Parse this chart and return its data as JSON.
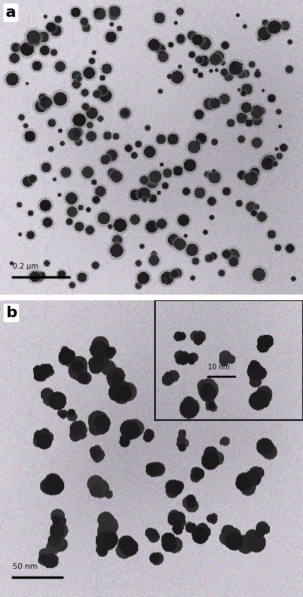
{
  "panel_a": {
    "label": "a",
    "scale_bar_text": "0.2 μm",
    "bg_r": 220,
    "bg_g": 215,
    "bg_b": 225,
    "bg_std": 12,
    "particle_color": 35,
    "particle_count": 250,
    "particle_size_min": 2,
    "particle_size_max": 10
  },
  "panel_b": {
    "label": "b",
    "scale_bar_text": "50 nm",
    "bg_r": 215,
    "bg_g": 210,
    "bg_b": 220,
    "bg_std": 13,
    "particle_color": 30,
    "particle_count": 70,
    "particle_size_min": 8,
    "particle_size_max": 22
  },
  "inset_scale_bar_text": "10 nm",
  "fig_width": 4.3,
  "fig_height": 8.47,
  "dpi": 100,
  "graphene_line_color": 160,
  "graphene_line_alpha": 0.25,
  "fiber_color": 155,
  "fiber_alpha": 0.3
}
